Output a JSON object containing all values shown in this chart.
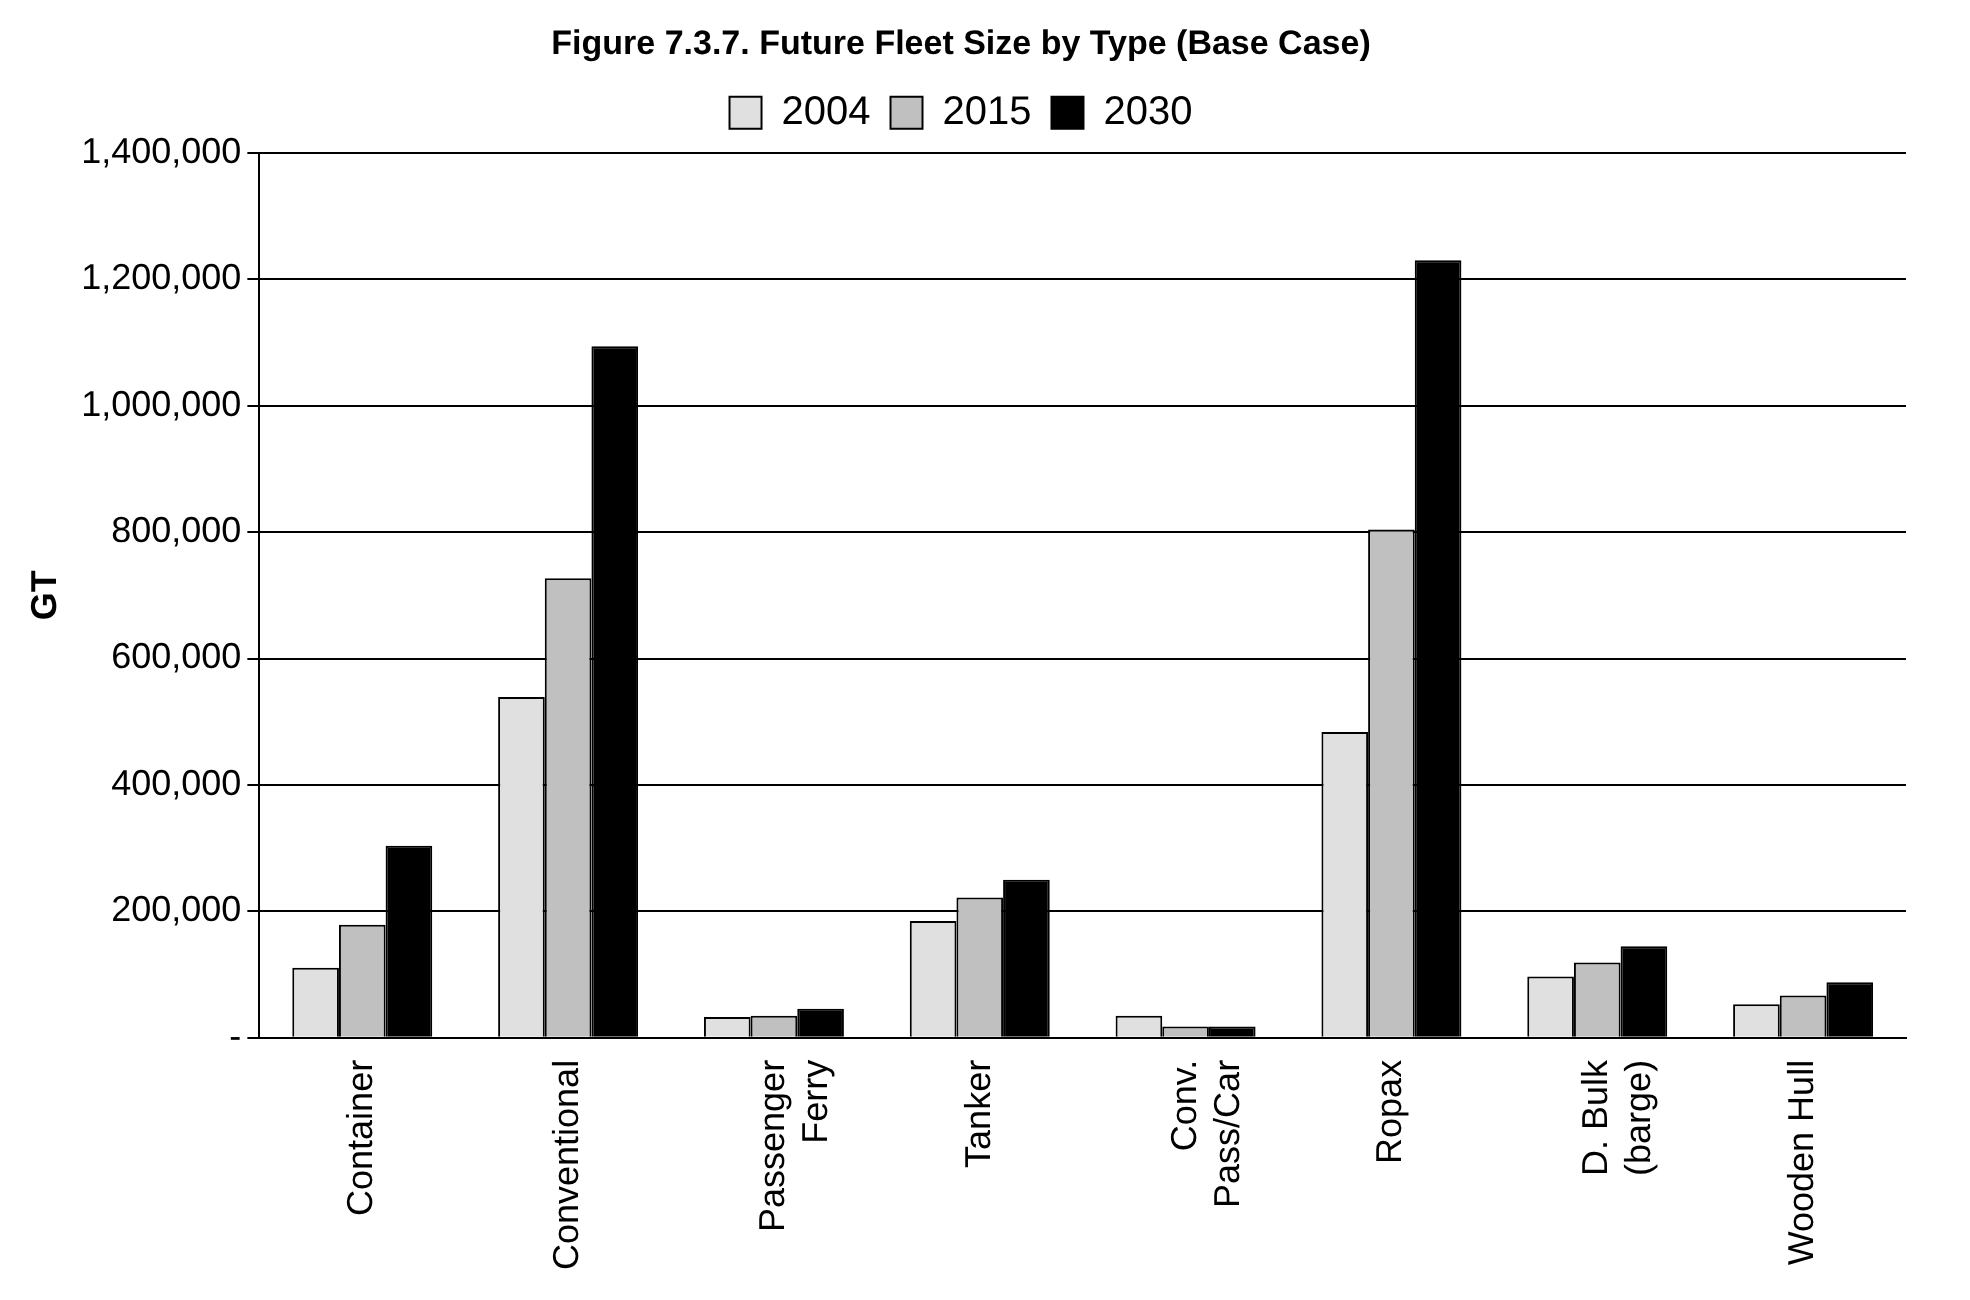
{
  "chart_data": {
    "type": "bar",
    "title": "Figure 7.3.7. Future Fleet Size by Type (Base Case)",
    "ylabel": "GT",
    "categories": [
      "Container",
      "Conventional",
      "Passenger\nFerry",
      "Tanker",
      "Conv.\nPass/Car",
      "Ropax",
      "D. Bulk\n(barge)",
      "Wooden Hull"
    ],
    "series": [
      {
        "name": "2004",
        "color": "#e0e0e0",
        "values": [
          111000,
          539000,
          33000,
          185000,
          35000,
          484000,
          97000,
          53000
        ]
      },
      {
        "name": "2015",
        "color": "#c0c0c0",
        "values": [
          179000,
          727000,
          35000,
          222000,
          18000,
          804000,
          119000,
          67000
        ]
      },
      {
        "name": "2030",
        "color": "#000000",
        "values": [
          304000,
          1094000,
          46000,
          250000,
          18000,
          1230000,
          145000,
          88000
        ]
      }
    ],
    "ylim": [
      0,
      1400000
    ],
    "yticks": [
      {
        "value": 0,
        "label": "-"
      },
      {
        "value": 200000,
        "label": "200,000"
      },
      {
        "value": 400000,
        "label": "400,000"
      },
      {
        "value": 600000,
        "label": "600,000"
      },
      {
        "value": 800000,
        "label": "800,000"
      },
      {
        "value": 1000000,
        "label": "1,000,000"
      },
      {
        "value": 1200000,
        "label": "1,200,000"
      },
      {
        "value": 1400000,
        "label": "1,400,000"
      }
    ],
    "grid": "y",
    "legend": "top"
  }
}
